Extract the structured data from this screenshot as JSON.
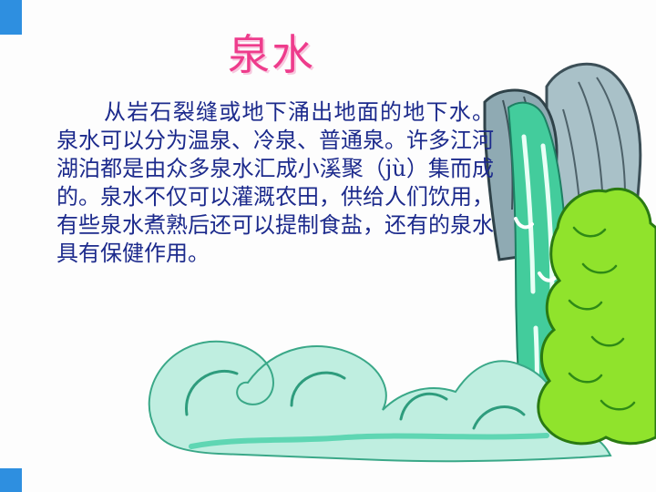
{
  "slide": {
    "title": "泉水",
    "body": "从岩石裂缝或地下涌出地面的地下水。泉水可以分为温泉、冷泉、普通泉。许多江河湖泊都是由众多泉水汇成小溪聚（jù）集而成的。泉水不仅可以灌溉农田，供给人们饮用，有些泉水煮熟后还可以提制食盐，还有的泉水具有保健作用。"
  },
  "colors": {
    "accent_corner": "#2e8fe0",
    "title": "#ee3c8c",
    "text": "#1c2a8c",
    "rock": "#93aeb7",
    "water": "#3cc99a",
    "bush": "#8fe32a"
  }
}
